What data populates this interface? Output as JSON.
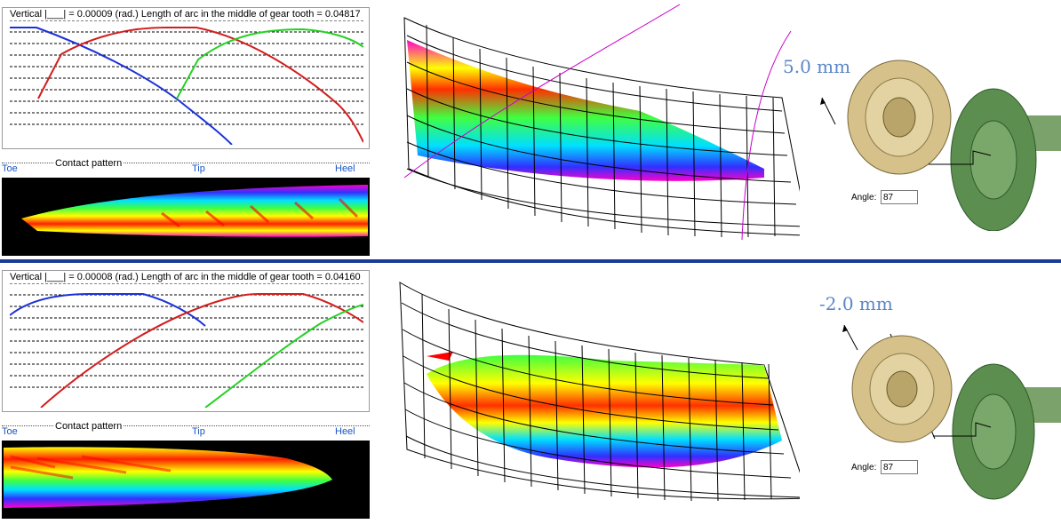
{
  "panels": [
    {
      "te_title": "Vertical |___| =  0.00009 (rad.) Length of arc in the middle of gear tooth =  0.04817",
      "contact_title": "Contact pattern",
      "axis": {
        "toe": "Toe",
        "tip": "Tip",
        "heel": "Heel"
      },
      "offset": "5.0 mm",
      "angle_label": "Angle:",
      "angle_value": "87"
    },
    {
      "te_title": "Vertical |___| =  0.00008 (rad.) Length of arc in the middle of gear tooth =  0.04160",
      "contact_title": "Contact pattern",
      "axis": {
        "toe": "Toe",
        "tip": "Tip",
        "heel": "Heel"
      },
      "offset": "-2.0 mm",
      "angle_label": "Angle:",
      "angle_value": "87"
    }
  ],
  "colors": {
    "divider": "#1a3a9a",
    "curve_blue": "#1c32d8",
    "curve_red": "#d21e1e",
    "curve_green": "#25d025",
    "axis_text": "#1a55c4",
    "offset_text": "#5a86c8",
    "gear_gold": "#d6c18a",
    "gear_green": "#5c8f4f"
  }
}
